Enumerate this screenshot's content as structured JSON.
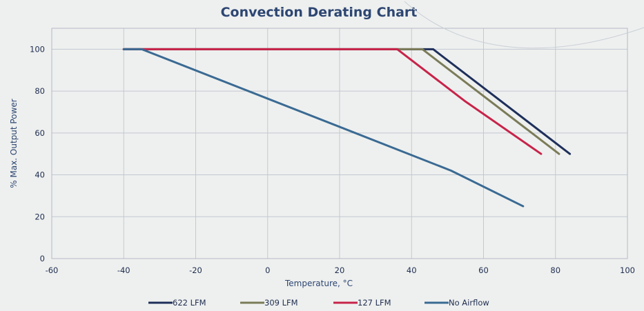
{
  "chart_data": {
    "type": "line",
    "title": "Convection Derating Chart",
    "xlabel": "Temperature, °C",
    "ylabel": "% Max. Output Power",
    "xlim": [
      -60,
      100
    ],
    "ylim": [
      0,
      110
    ],
    "xticks": [
      -60,
      -40,
      -20,
      0,
      20,
      40,
      60,
      80,
      100
    ],
    "yticks": [
      0,
      20,
      40,
      60,
      80,
      100
    ],
    "grid": true,
    "legend_position": "bottom",
    "series": [
      {
        "name": "622 LFM",
        "color": "#1e2f5a",
        "x": [
          -40,
          46,
          84
        ],
        "y": [
          100,
          100,
          50
        ]
      },
      {
        "name": "309 LFM",
        "color": "#7b7b58",
        "x": [
          -40,
          43,
          81
        ],
        "y": [
          100,
          100,
          50
        ]
      },
      {
        "name": "127 LFM",
        "color": "#c8234a",
        "x": [
          -40,
          36,
          55,
          76
        ],
        "y": [
          100,
          100,
          75,
          50
        ]
      },
      {
        "name": "No Airflow",
        "color": "#3a6a93",
        "x": [
          -40,
          -35,
          51,
          71
        ],
        "y": [
          100,
          100,
          42,
          25
        ]
      }
    ]
  }
}
